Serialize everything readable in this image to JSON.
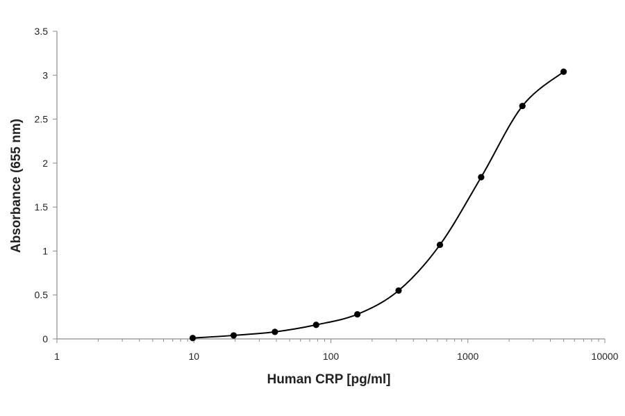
{
  "chart_data": {
    "type": "scatter",
    "title": "",
    "xlabel": "Human CRP [pg/ml]",
    "ylabel": "Absorbance (655 nm)",
    "x_scale": "log",
    "xlim": [
      1,
      10000
    ],
    "ylim": [
      0,
      3.5
    ],
    "x_ticks": [
      1,
      10,
      100,
      1000,
      10000
    ],
    "y_ticks": [
      0,
      0.5,
      1,
      1.5,
      2,
      2.5,
      3,
      3.5
    ],
    "x_tick_labels": [
      "1",
      "10",
      "100",
      "1000",
      "10000"
    ],
    "y_tick_labels": [
      "0",
      "0.5",
      "1",
      "1.5",
      "2",
      "2.5",
      "3",
      "3.5"
    ],
    "grid": false,
    "legend": "none",
    "series": [
      {
        "marker_color": "#000000",
        "line_style": "smoothed curve through points",
        "points": [
          {
            "x": 9.8,
            "y": 0.01
          },
          {
            "x": 19.5,
            "y": 0.04
          },
          {
            "x": 39,
            "y": 0.08
          },
          {
            "x": 78,
            "y": 0.16
          },
          {
            "x": 156,
            "y": 0.28
          },
          {
            "x": 312,
            "y": 0.55
          },
          {
            "x": 625,
            "y": 1.07
          },
          {
            "x": 1250,
            "y": 1.84
          },
          {
            "x": 2500,
            "y": 2.65
          },
          {
            "x": 5000,
            "y": 3.04
          }
        ]
      }
    ]
  }
}
